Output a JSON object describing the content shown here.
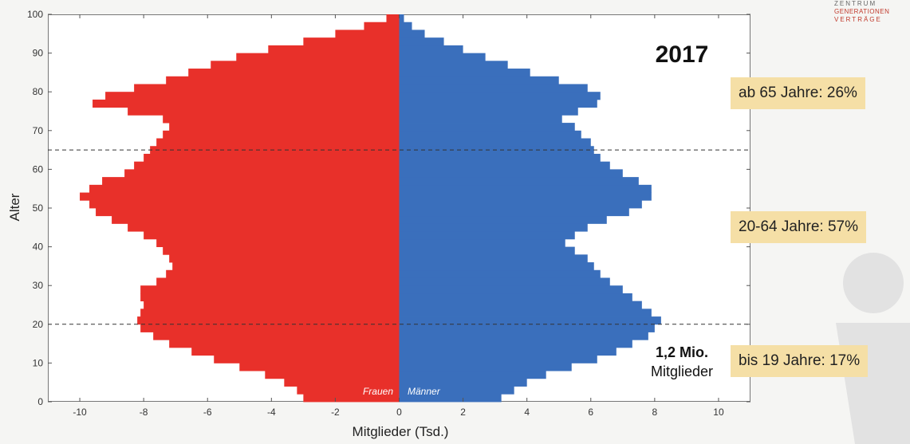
{
  "logo": {
    "line1": "ZENTRUM",
    "line2": "GENERATIONEN",
    "line3": "VERTRÄGE",
    "color": "#c0392b"
  },
  "callouts": {
    "top": "ab 65 Jahre: 26%",
    "middle": "20-64 Jahre: 57%",
    "bottom": "bis 19 Jahre: 17%",
    "background": "#f5dfa6"
  },
  "chart_data": {
    "type": "bar",
    "orientation": "horizontal",
    "title": "2017",
    "xlabel": "Mitglieder (Tsd.)",
    "ylabel": "Alter",
    "xlim": [
      -11,
      11
    ],
    "ylim": [
      0,
      100
    ],
    "xticks": [
      -10,
      -8,
      -6,
      -4,
      -2,
      0,
      2,
      4,
      6,
      8,
      10
    ],
    "yticks": [
      0,
      10,
      20,
      30,
      40,
      50,
      60,
      70,
      80,
      90,
      100
    ],
    "reference_lines_y": [
      20,
      65
    ],
    "annotation": {
      "line1": "1,2 Mio.",
      "line2": "Mitglieder"
    },
    "series": [
      {
        "name": "Frauen",
        "color": "#e8302a",
        "ages": [
          0,
          2,
          4,
          6,
          8,
          10,
          12,
          14,
          16,
          18,
          20,
          22,
          24,
          26,
          28,
          30,
          32,
          34,
          36,
          38,
          40,
          42,
          44,
          46,
          48,
          50,
          52,
          54,
          56,
          58,
          60,
          62,
          64,
          66,
          68,
          70,
          72,
          74,
          76,
          78,
          80,
          82,
          84,
          86,
          88,
          90,
          92,
          94,
          96,
          98,
          100
        ],
        "values": [
          -3.0,
          -3.2,
          -3.6,
          -4.2,
          -5.0,
          -5.8,
          -6.5,
          -7.2,
          -7.7,
          -8.1,
          -8.2,
          -8.1,
          -8.0,
          -8.1,
          -8.1,
          -7.6,
          -7.3,
          -7.1,
          -7.2,
          -7.4,
          -7.6,
          -8.0,
          -8.5,
          -9.0,
          -9.5,
          -9.7,
          -10.0,
          -9.7,
          -9.3,
          -8.6,
          -8.3,
          -8.0,
          -7.8,
          -7.6,
          -7.4,
          -7.2,
          -7.4,
          -8.5,
          -9.6,
          -9.2,
          -8.3,
          -7.3,
          -6.6,
          -5.9,
          -5.1,
          -4.1,
          -3.0,
          -2.0,
          -1.1,
          -0.4,
          -0.05
        ]
      },
      {
        "name": "Männer",
        "color": "#3a6fbc",
        "ages": [
          0,
          2,
          4,
          6,
          8,
          10,
          12,
          14,
          16,
          18,
          20,
          22,
          24,
          26,
          28,
          30,
          32,
          34,
          36,
          38,
          40,
          42,
          44,
          46,
          48,
          50,
          52,
          54,
          56,
          58,
          60,
          62,
          64,
          66,
          68,
          70,
          72,
          74,
          76,
          78,
          80,
          82,
          84,
          86,
          88,
          90,
          92,
          94,
          96,
          98,
          100
        ],
        "values": [
          3.2,
          3.6,
          4.0,
          4.6,
          5.4,
          6.2,
          6.8,
          7.3,
          7.8,
          8.0,
          8.2,
          7.9,
          7.6,
          7.3,
          7.0,
          6.6,
          6.3,
          6.1,
          5.9,
          5.5,
          5.2,
          5.5,
          5.9,
          6.5,
          7.2,
          7.6,
          7.9,
          7.9,
          7.5,
          7.0,
          6.6,
          6.3,
          6.1,
          6.0,
          5.7,
          5.5,
          5.1,
          5.6,
          6.2,
          6.3,
          5.9,
          5.0,
          4.1,
          3.4,
          2.7,
          2.0,
          1.4,
          0.8,
          0.4,
          0.15,
          0.03
        ]
      }
    ]
  }
}
